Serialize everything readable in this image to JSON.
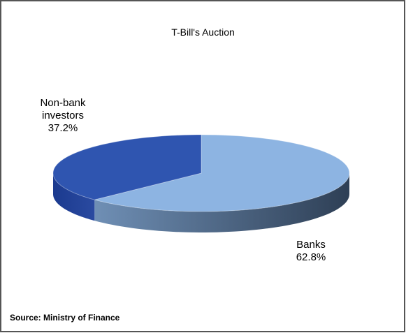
{
  "chart_data": {
    "type": "pie3d",
    "title": "T-Bill's Auction",
    "categories": [
      "Banks",
      "Non-bank investors"
    ],
    "values": [
      62.8,
      37.2
    ],
    "value_labels": [
      "62.8%",
      "37.2%"
    ],
    "colors": [
      "#8db4e2",
      "#2f55b0"
    ],
    "source": "Source: Ministry of Finance"
  }
}
